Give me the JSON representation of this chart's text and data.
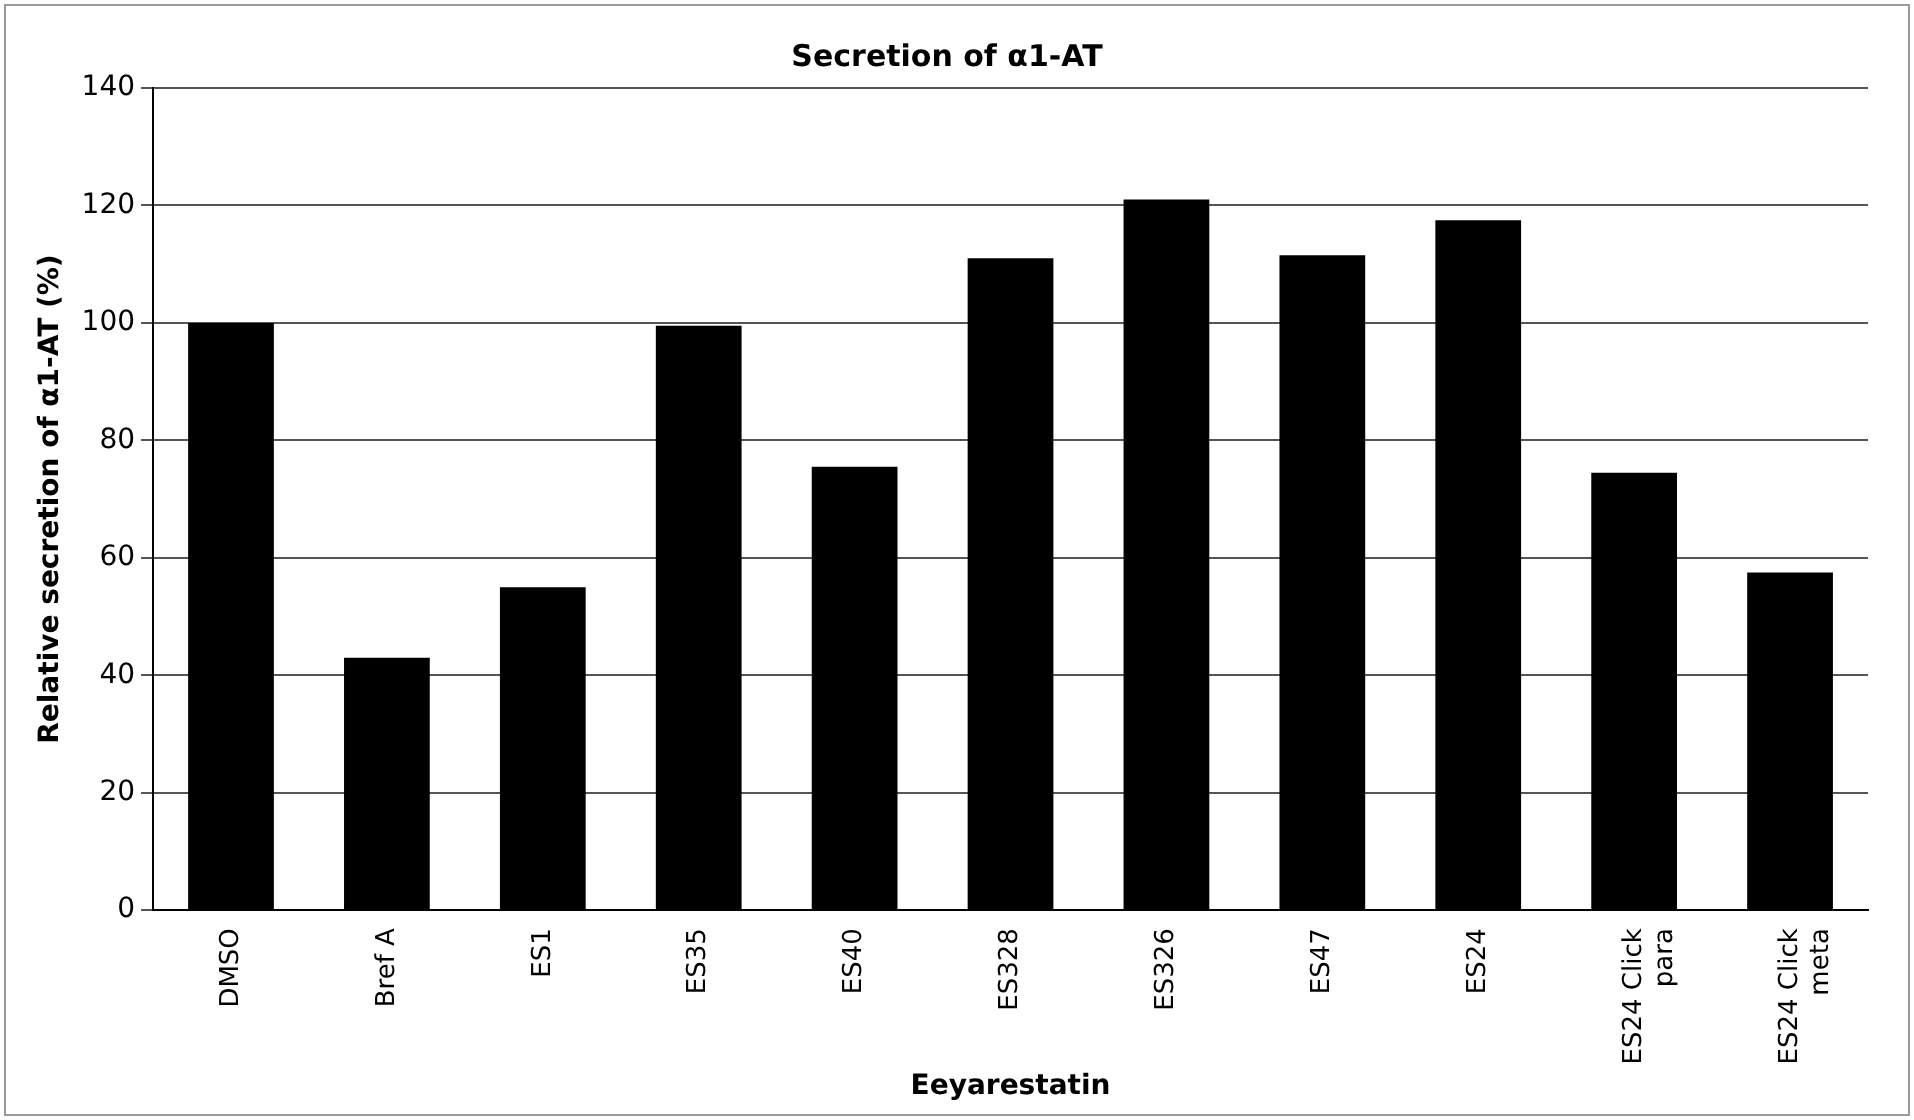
{
  "chart_data": {
    "type": "bar",
    "title": "Secretion of α1-AT",
    "xlabel": "Eeyarestatin",
    "ylabel": "Relative secretion of α1-AT (%)",
    "categories": [
      "DMSO",
      "Bref A",
      "ES1",
      "ES35",
      "ES40",
      "ES328",
      "ES326",
      "ES47",
      "ES24",
      "ES24 Click para",
      "ES24 Click meta"
    ],
    "values": [
      100,
      43,
      55,
      99.5,
      75.5,
      111,
      121,
      111.5,
      117.5,
      74.5,
      57.5
    ],
    "color": "#000000",
    "ylim": [
      0,
      140
    ],
    "yticks": [
      0,
      20,
      40,
      60,
      80,
      100,
      120,
      140
    ],
    "grid": "y",
    "legend": false
  }
}
